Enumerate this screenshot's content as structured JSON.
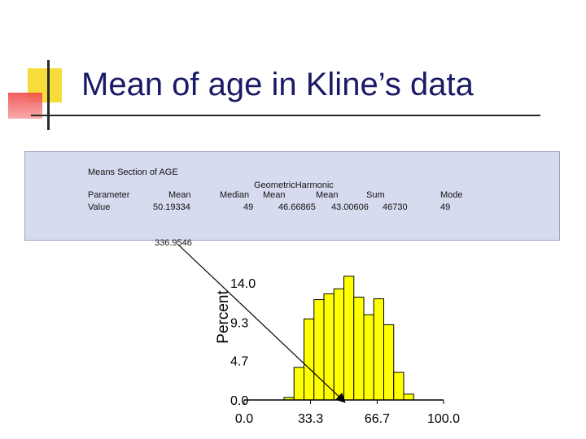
{
  "slide": {
    "title": "Mean of age in Kline’s data",
    "accent_colors": {
      "yellow": "#f6dd3a",
      "red": "#f04a4a",
      "rule": "#2a2a2a"
    }
  },
  "means_table": {
    "section_title": "Means Section of AGE",
    "header_parameter": "Parameter",
    "header_mean": "Mean",
    "header_group": "GeometricHarmonic",
    "header_median": "Median",
    "header_geometric": "Mean",
    "header_harmonic": "Mean",
    "header_sum": "Sum",
    "header_mode": "Mode",
    "row_label": "Value",
    "mean_value": "50.19334",
    "median_value": "49",
    "geometric_value": "46.66865",
    "harmonic_value": "43.00606",
    "sum_value": "46730",
    "mode_value": "49",
    "extra_value": "336.9546"
  },
  "chart_data": {
    "type": "bar",
    "ylabel": "Percent",
    "xlabel": "",
    "title": "",
    "ylim": [
      0,
      14.0
    ],
    "xlim": [
      0,
      100
    ],
    "y_ticks": [
      "14.0",
      "9.3",
      "4.7",
      "0.0"
    ],
    "x_ticks": [
      "0.0",
      "33.3",
      "66.7",
      "100.0"
    ],
    "bin_edges": [
      0,
      5,
      10,
      15,
      20,
      25,
      30,
      35,
      40,
      45,
      50,
      55,
      60,
      65,
      70,
      75,
      80,
      85,
      90,
      95,
      100
    ],
    "values": [
      0,
      0,
      0,
      0,
      0.3,
      3.9,
      9.7,
      12.0,
      12.7,
      13.3,
      14.8,
      12.3,
      10.2,
      12.1,
      9.0,
      3.3,
      0.7,
      0,
      0,
      0
    ],
    "bar_color": "#ffff00",
    "arrow": {
      "from_label": "mean_value",
      "to_x": 50.2
    }
  }
}
